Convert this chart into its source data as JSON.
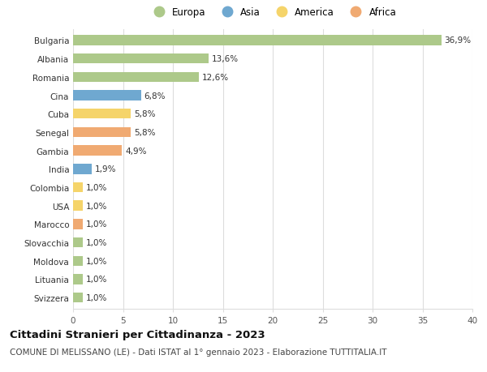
{
  "countries": [
    "Bulgaria",
    "Albania",
    "Romania",
    "Cina",
    "Cuba",
    "Senegal",
    "Gambia",
    "India",
    "Colombia",
    "USA",
    "Marocco",
    "Slovacchia",
    "Moldova",
    "Lituania",
    "Svizzera"
  ],
  "values": [
    36.9,
    13.6,
    12.6,
    6.8,
    5.8,
    5.8,
    4.9,
    1.9,
    1.0,
    1.0,
    1.0,
    1.0,
    1.0,
    1.0,
    1.0
  ],
  "labels": [
    "36,9%",
    "13,6%",
    "12,6%",
    "6,8%",
    "5,8%",
    "5,8%",
    "4,9%",
    "1,9%",
    "1,0%",
    "1,0%",
    "1,0%",
    "1,0%",
    "1,0%",
    "1,0%",
    "1,0%"
  ],
  "continents": [
    "Europa",
    "Europa",
    "Europa",
    "Asia",
    "America",
    "Africa",
    "Africa",
    "Asia",
    "America",
    "America",
    "Africa",
    "Europa",
    "Europa",
    "Europa",
    "Europa"
  ],
  "continent_colors": {
    "Europa": "#adc98a",
    "Asia": "#6fa8d0",
    "America": "#f5d46a",
    "Africa": "#f0aa72"
  },
  "legend_order": [
    "Europa",
    "Asia",
    "America",
    "Africa"
  ],
  "title": "Cittadini Stranieri per Cittadinanza - 2023",
  "subtitle": "COMUNE DI MELISSANO (LE) - Dati ISTAT al 1° gennaio 2023 - Elaborazione TUTTITALIA.IT",
  "xlim": [
    0,
    40
  ],
  "xticks": [
    0,
    5,
    10,
    15,
    20,
    25,
    30,
    35,
    40
  ],
  "background_color": "#ffffff",
  "grid_color": "#dddddd",
  "bar_height": 0.55,
  "title_fontsize": 9.5,
  "subtitle_fontsize": 7.5,
  "label_fontsize": 7.5,
  "tick_fontsize": 7.5,
  "legend_fontsize": 8.5
}
